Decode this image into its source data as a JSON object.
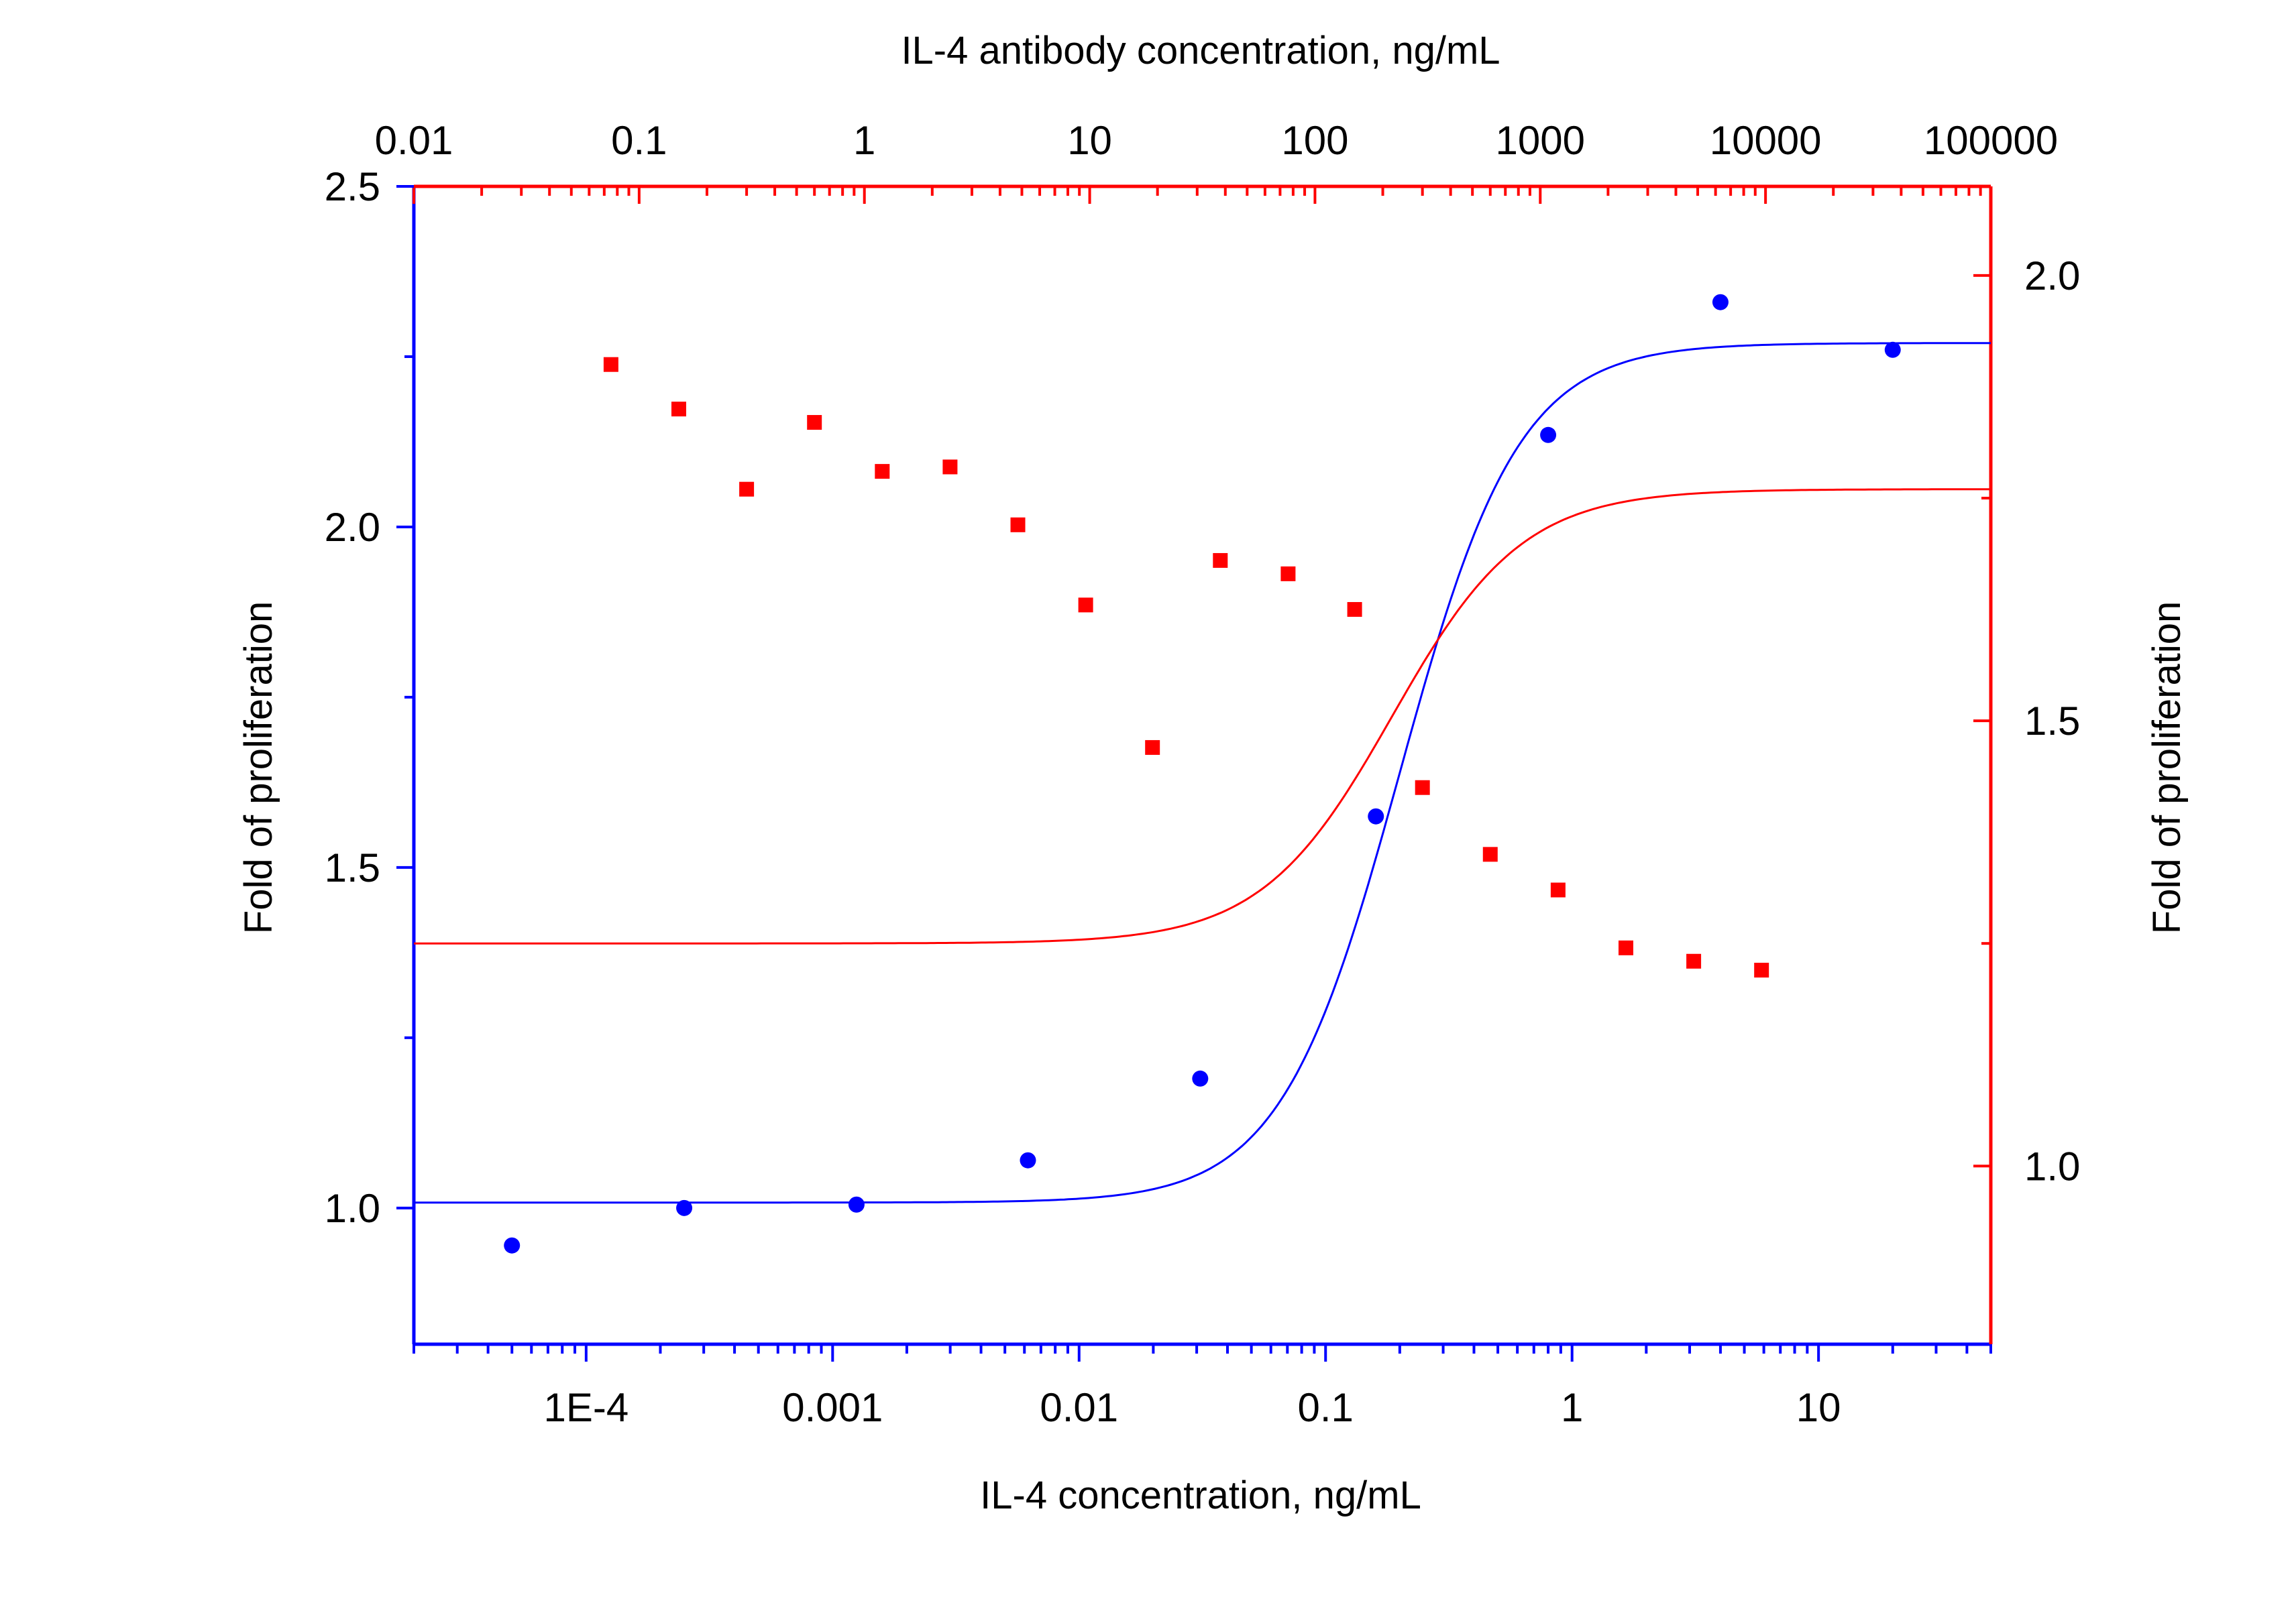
{
  "chart_data": {
    "type": "scatter",
    "title": "",
    "bottom_axis": {
      "label": "IL-4 concentration, ng/mL",
      "scale": "log",
      "range": [
        2e-05,
        50
      ],
      "ticks": [
        {
          "value": 0.0001,
          "label": "1E-4"
        },
        {
          "value": 0.001,
          "label": "0.001"
        },
        {
          "value": 0.01,
          "label": "0.01"
        },
        {
          "value": 0.1,
          "label": "0.1"
        },
        {
          "value": 1,
          "label": "1"
        },
        {
          "value": 10,
          "label": "10"
        }
      ],
      "color": "#0000ff"
    },
    "top_axis": {
      "label": "IL-4 antibody concentration, ng/mL",
      "scale": "log",
      "range": [
        0.01,
        100000
      ],
      "ticks": [
        {
          "value": 0.01,
          "label": "0.01"
        },
        {
          "value": 0.1,
          "label": "0.1"
        },
        {
          "value": 1,
          "label": "1"
        },
        {
          "value": 10,
          "label": "10"
        },
        {
          "value": 100,
          "label": "100"
        },
        {
          "value": 1000,
          "label": "1000"
        },
        {
          "value": 10000,
          "label": "10000"
        },
        {
          "value": 100000,
          "label": "100000"
        }
      ],
      "color": "#ff0000"
    },
    "left_axis": {
      "label": "Fold of proliferation",
      "range": [
        0.8,
        2.5
      ],
      "ticks": [
        {
          "value": 1.0,
          "label": "1.0"
        },
        {
          "value": 1.5,
          "label": "1.5"
        },
        {
          "value": 2.0,
          "label": "2.0"
        },
        {
          "value": 2.5,
          "label": "2.5"
        }
      ],
      "color": "#0000ff"
    },
    "right_axis": {
      "label": "Fold of proliferation",
      "range": [
        0.8,
        2.1
      ],
      "ticks": [
        {
          "value": 1.0,
          "label": "1.0"
        },
        {
          "value": 1.5,
          "label": "1.5"
        },
        {
          "value": 2.0,
          "label": "2.0"
        }
      ],
      "color": "#ff0000"
    },
    "grid": false,
    "series": [
      {
        "axes": "bottom-left",
        "marker": "circle",
        "color": "#0000ff",
        "x": [
          5e-05,
          0.00025,
          0.00125,
          0.0062,
          0.031,
          0.16,
          0.8,
          4,
          20
        ],
        "y": [
          0.945,
          1.0,
          1.005,
          1.07,
          1.19,
          1.575,
          2.135,
          2.33,
          2.26
        ],
        "fit": {
          "model": "4PL",
          "bottom": 1.008,
          "top": 2.27,
          "ec50": 0.2,
          "hill": 1.8
        }
      },
      {
        "axes": "top-right",
        "marker": "square",
        "color": "#ff0000",
        "x": [
          0.075,
          0.15,
          0.3,
          0.6,
          1.2,
          2.4,
          4.8,
          9.6,
          19,
          38,
          76,
          150,
          300,
          600,
          1200,
          2400,
          4800,
          9600
        ],
        "y": [
          1.9,
          1.85,
          1.76,
          1.835,
          1.78,
          1.785,
          1.72,
          1.63,
          1.47,
          1.68,
          1.665,
          1.625,
          1.425,
          1.35,
          1.31,
          1.245,
          1.23,
          1.22
        ],
        "fit": {
          "model": "4PL",
          "bottom": 1.25,
          "top": 1.76,
          "ec50": 220,
          "hill": 1.5
        }
      }
    ]
  }
}
